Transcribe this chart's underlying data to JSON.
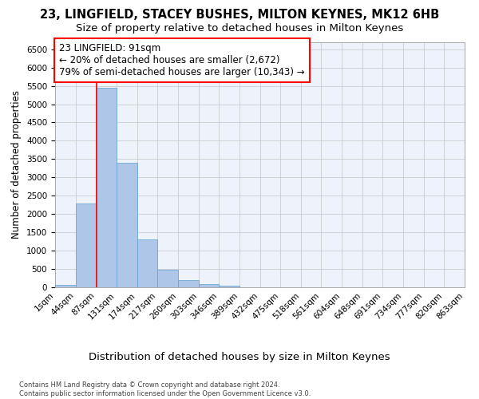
{
  "title1": "23, LINGFIELD, STACEY BUSHES, MILTON KEYNES, MK12 6HB",
  "title2": "Size of property relative to detached houses in Milton Keynes",
  "xlabel": "Distribution of detached houses by size in Milton Keynes",
  "ylabel": "Number of detached properties",
  "bar_values": [
    60,
    2280,
    5450,
    3400,
    1310,
    490,
    200,
    80,
    40,
    10,
    5,
    2,
    1,
    0,
    0,
    0,
    0,
    0,
    0,
    0
  ],
  "bin_labels": [
    "1sqm",
    "44sqm",
    "87sqm",
    "131sqm",
    "174sqm",
    "217sqm",
    "260sqm",
    "303sqm",
    "346sqm",
    "389sqm",
    "432sqm",
    "475sqm",
    "518sqm",
    "561sqm",
    "604sqm",
    "648sqm",
    "691sqm",
    "734sqm",
    "777sqm",
    "820sqm",
    "863sqm"
  ],
  "bar_color": "#aec6e8",
  "bar_edge_color": "#5a9fd4",
  "grid_color": "#cccccc",
  "background_color": "#eef3fb",
  "red_line_x": 1.53,
  "annotation_text": "23 LINGFIELD: 91sqm\n← 20% of detached houses are smaller (2,672)\n79% of semi-detached houses are larger (10,343) →",
  "annotation_box_color": "white",
  "annotation_box_edge": "red",
  "footer_text": "Contains HM Land Registry data © Crown copyright and database right 2024.\nContains public sector information licensed under the Open Government Licence v3.0.",
  "ylim": [
    0,
    6700
  ],
  "yticks": [
    0,
    500,
    1000,
    1500,
    2000,
    2500,
    3000,
    3500,
    4000,
    4500,
    5000,
    5500,
    6000,
    6500
  ],
  "title1_fontsize": 10.5,
  "title2_fontsize": 9.5,
  "xlabel_fontsize": 9.5,
  "ylabel_fontsize": 8.5,
  "tick_fontsize": 7.5,
  "annotation_fontsize": 8.5,
  "footer_fontsize": 6.0
}
